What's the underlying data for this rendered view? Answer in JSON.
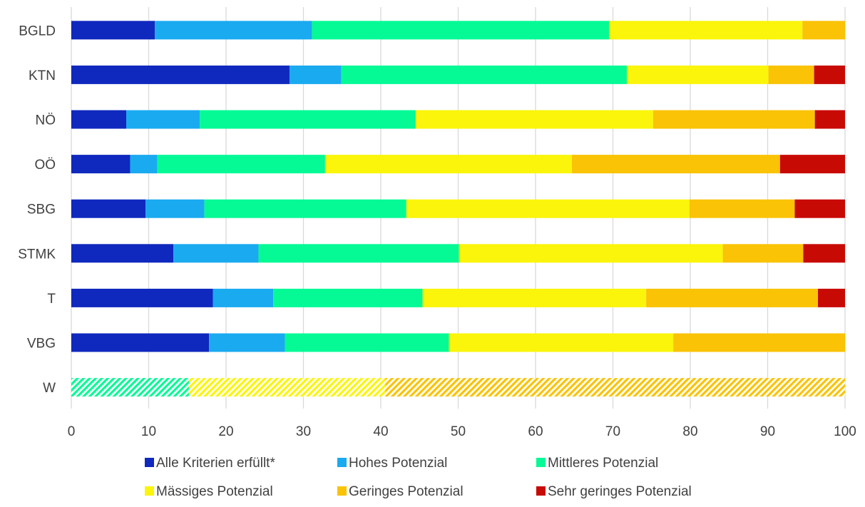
{
  "chart_data": {
    "type": "bar",
    "orientation": "horizontal",
    "stacked": true,
    "title": "",
    "xlabel": "",
    "ylabel": "",
    "xlim": [
      0,
      100
    ],
    "x_ticks": [
      0,
      10,
      20,
      30,
      40,
      50,
      60,
      70,
      80,
      90,
      100
    ],
    "grid": "vertical",
    "legend_position": "bottom",
    "categories": [
      "BGLD",
      "KTN",
      "NÖ",
      "OÖ",
      "SBG",
      "STMK",
      "T",
      "VBG",
      "W"
    ],
    "hatched_categories": [
      "W"
    ],
    "series": [
      {
        "name": "Alle Kriterien erfüllt*",
        "color": "#0F28BE",
        "values": [
          10.8,
          28.2,
          7.1,
          7.6,
          9.6,
          13.2,
          18.3,
          17.8,
          0
        ]
      },
      {
        "name": "Hohes Potenzial",
        "color": "#1AAAF0",
        "values": [
          20.3,
          6.7,
          9.5,
          3.5,
          7.6,
          11.0,
          7.8,
          9.8,
          0
        ]
      },
      {
        "name": "Mittleres Potenzial",
        "color": "#05FA96",
        "values": [
          38.4,
          36.9,
          27.9,
          21.7,
          26.1,
          25.9,
          19.3,
          21.2,
          15.2
        ]
      },
      {
        "name": "Mässiges Potenzial",
        "color": "#FAF50A",
        "values": [
          25.0,
          18.3,
          30.7,
          31.9,
          36.6,
          34.1,
          28.9,
          29.0,
          25.4
        ]
      },
      {
        "name": "Geringes Potenzial",
        "color": "#FAC305",
        "values": [
          5.5,
          5.9,
          20.9,
          26.9,
          13.6,
          10.4,
          22.2,
          22.2,
          59.4
        ]
      },
      {
        "name": "Sehr geringes Potenzial",
        "color": "#C80A05",
        "values": [
          0.0,
          4.0,
          3.9,
          8.4,
          6.5,
          5.4,
          3.5,
          0.0,
          0.0
        ]
      }
    ]
  }
}
